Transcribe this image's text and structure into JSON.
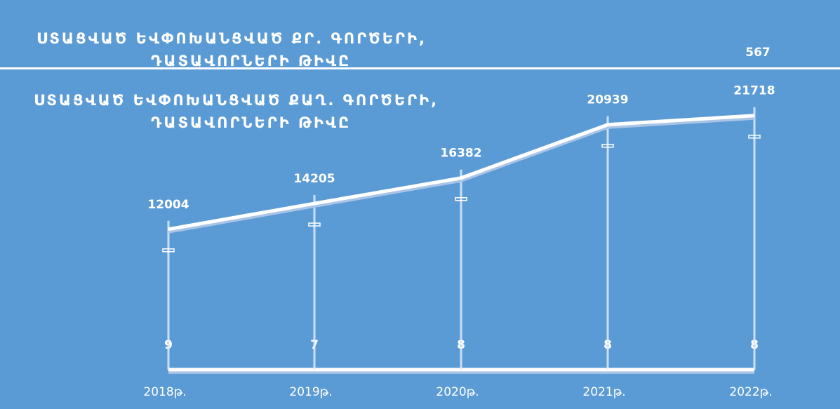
{
  "chart_data": [
    {
      "type": "line",
      "title": "ՍՏԱՑՎԱԾ ԵՎՓՈԽԱՆՑՎԱԾ ՔՐ. ԳՈՐԾԵՐԻ, ԴԱՏԱՎՈՐՆԵՐԻ ԹԻՎԸ",
      "categories": [
        "2018թ.",
        "2019թ.",
        "2020թ.",
        "2021թ.",
        "2022թ."
      ],
      "values": [
        9,
        7,
        8,
        8,
        8
      ],
      "color": "#ffffff",
      "annotation": "567",
      "ylim": [
        0,
        25000
      ]
    },
    {
      "type": "line",
      "title": "ՍՏԱՑՎԱԾ ԵՎՓՈԽԱՆՑՎԱԾ ՔԱՂ. ԳՈՐԾԵՐԻ, ԴԱՏԱՎՈՐՆԵՐԻ ԹԻՎԸ",
      "categories": [
        "2018թ.",
        "2019թ.",
        "2020թ.",
        "2021թ.",
        "2022թ."
      ],
      "values": [
        12004,
        14205,
        16382,
        20939,
        21718
      ],
      "color": "#ffffff",
      "ylim": [
        0,
        25000
      ]
    }
  ]
}
